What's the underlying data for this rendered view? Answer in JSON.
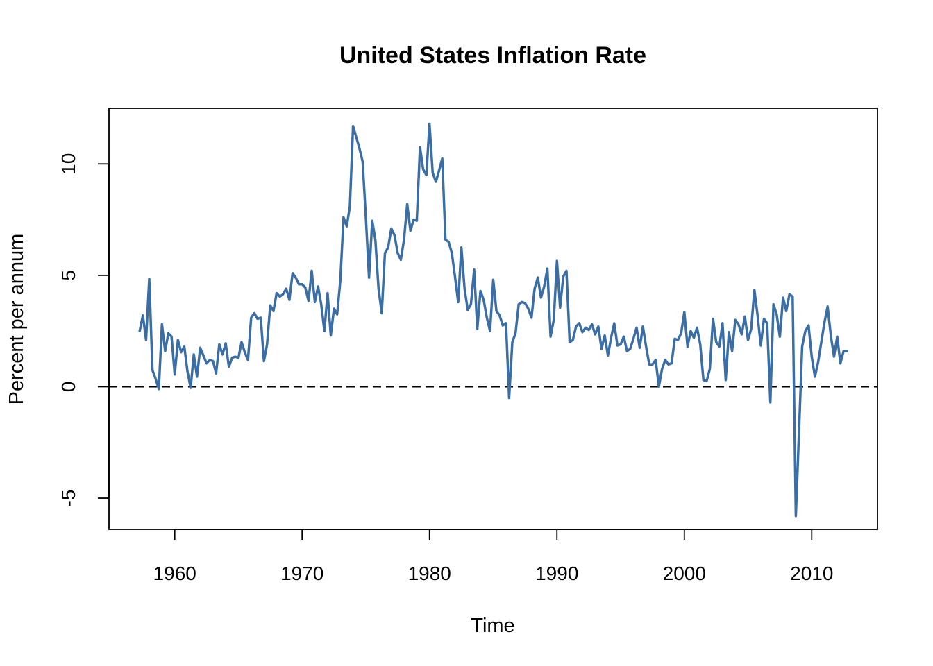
{
  "chart_data": {
    "type": "line",
    "title": "United States Inflation Rate",
    "xlabel": "Time",
    "ylabel": "Percent per annum",
    "xlim": [
      1954.84,
      2015.16
    ],
    "ylim": [
      -6.4,
      12.5
    ],
    "x_ticks": [
      1960,
      1970,
      1980,
      1990,
      2000,
      2010
    ],
    "x_tick_labels": [
      "1960",
      "1970",
      "1980",
      "1990",
      "2000",
      "2010"
    ],
    "y_ticks": [
      -5,
      0,
      5,
      10
    ],
    "y_tick_labels": [
      "-5",
      "0",
      "5",
      "10"
    ],
    "reference_line": {
      "y": 0,
      "style": "dashed",
      "color": "#000000"
    },
    "series": [
      {
        "name": "Inflation rate",
        "color": "#3A6EA5",
        "start": 1957.25,
        "step": 0.25,
        "values": [
          2.5,
          3.2,
          2.1,
          4.85,
          0.75,
          0.35,
          -0.1,
          2.8,
          1.6,
          2.4,
          2.25,
          0.55,
          2.1,
          1.55,
          1.8,
          0.7,
          -0.05,
          1.45,
          0.45,
          1.75,
          1.4,
          1.05,
          1.2,
          1.15,
          0.6,
          1.9,
          1.45,
          1.95,
          0.9,
          1.3,
          1.35,
          1.3,
          2.0,
          1.55,
          1.2,
          3.1,
          3.3,
          3.05,
          3.1,
          1.15,
          1.9,
          3.65,
          3.4,
          4.2,
          4.05,
          4.15,
          4.4,
          3.9,
          5.1,
          4.9,
          4.6,
          4.6,
          4.45,
          3.85,
          5.2,
          3.8,
          4.5,
          3.7,
          2.5,
          4.2,
          2.3,
          3.5,
          3.25,
          4.8,
          7.6,
          7.2,
          8.1,
          11.7,
          11.2,
          10.7,
          10.1,
          7.6,
          4.9,
          7.45,
          6.6,
          4.4,
          3.3,
          6.0,
          6.25,
          7.1,
          6.8,
          6.0,
          5.7,
          6.6,
          8.2,
          7.0,
          7.5,
          7.45,
          10.75,
          9.75,
          9.5,
          11.8,
          9.6,
          9.2,
          9.7,
          10.25,
          6.6,
          6.5,
          6.0,
          4.95,
          3.8,
          6.25,
          4.4,
          3.45,
          3.7,
          5.25,
          2.6,
          4.3,
          3.9,
          3.1,
          2.5,
          4.8,
          3.4,
          3.2,
          2.75,
          2.85,
          -0.5,
          2.0,
          2.4,
          3.7,
          3.8,
          3.75,
          3.5,
          3.1,
          4.4,
          4.9,
          4.0,
          4.5,
          5.3,
          2.25,
          3.0,
          5.65,
          3.55,
          4.95,
          5.2,
          2.0,
          2.1,
          2.7,
          2.85,
          2.45,
          2.65,
          2.55,
          2.8,
          2.35,
          2.7,
          1.7,
          2.3,
          1.4,
          2.2,
          2.85,
          1.85,
          1.9,
          2.25,
          1.6,
          1.7,
          2.15,
          2.65,
          1.75,
          2.7,
          1.8,
          1.0,
          1.0,
          1.2,
          0.0,
          0.8,
          1.2,
          1.0,
          1.05,
          2.15,
          2.1,
          2.4,
          3.35,
          1.8,
          2.5,
          2.2,
          2.65,
          1.9,
          0.3,
          0.25,
          0.8,
          3.05,
          2.0,
          1.8,
          2.85,
          0.3,
          2.45,
          1.6,
          3.0,
          2.8,
          2.35,
          3.15,
          2.1,
          2.6,
          4.35,
          3.2,
          1.85,
          3.05,
          2.85,
          -0.7,
          3.7,
          3.25,
          2.25,
          4.0,
          3.4,
          4.15,
          4.05,
          -5.8,
          -2.0,
          1.8,
          2.5,
          2.75,
          1.35,
          0.45,
          1.1,
          2.0,
          2.9,
          3.6,
          2.3,
          1.35,
          2.25,
          1.05,
          1.6,
          1.6
        ]
      }
    ]
  }
}
